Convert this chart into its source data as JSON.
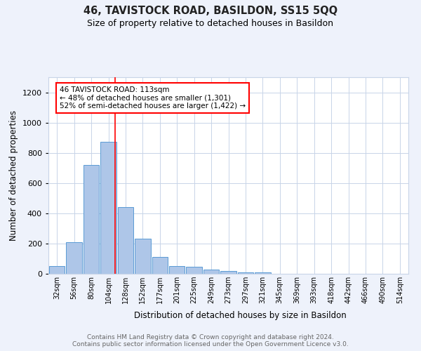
{
  "title1": "46, TAVISTOCK ROAD, BASILDON, SS15 5QQ",
  "title2": "Size of property relative to detached houses in Basildon",
  "xlabel": "Distribution of detached houses by size in Basildon",
  "ylabel": "Number of detached properties",
  "bar_labels": [
    "32sqm",
    "56sqm",
    "80sqm",
    "104sqm",
    "128sqm",
    "152sqm",
    "177sqm",
    "201sqm",
    "225sqm",
    "249sqm",
    "273sqm",
    "297sqm",
    "321sqm",
    "345sqm",
    "369sqm",
    "393sqm",
    "418sqm",
    "442sqm",
    "466sqm",
    "490sqm",
    "514sqm"
  ],
  "bar_values": [
    50,
    210,
    720,
    875,
    440,
    230,
    110,
    50,
    45,
    30,
    20,
    10,
    10,
    0,
    0,
    0,
    0,
    0,
    0,
    0,
    0
  ],
  "bar_color": "#aec6e8",
  "bar_edge_color": "#5b9bd5",
  "annotation_text": "46 TAVISTOCK ROAD: 113sqm\n← 48% of detached houses are smaller (1,301)\n52% of semi-detached houses are larger (1,422) →",
  "annotation_box_color": "white",
  "annotation_box_edge": "red",
  "ylim": [
    0,
    1300
  ],
  "yticks": [
    0,
    200,
    400,
    600,
    800,
    1000,
    1200
  ],
  "footer_text": "Contains HM Land Registry data © Crown copyright and database right 2024.\nContains public sector information licensed under the Open Government Licence v3.0.",
  "bg_color": "#eef2fb",
  "plot_bg_color": "white",
  "grid_color": "#c8d4e8"
}
